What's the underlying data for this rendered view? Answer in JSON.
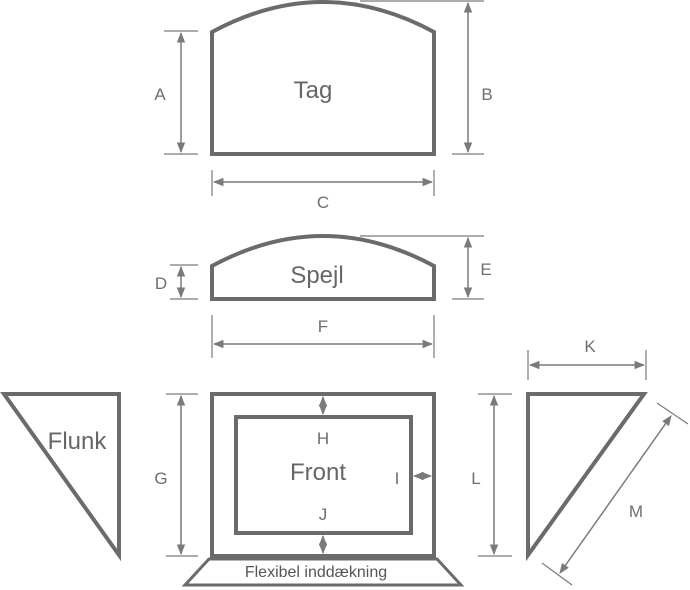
{
  "parts": {
    "tag": "Tag",
    "spejl": "Spejl",
    "flunk": "Flunk",
    "front": "Front",
    "flexibel": "Flexibel inddækning"
  },
  "dimensions": {
    "A": "A",
    "B": "B",
    "C": "C",
    "D": "D",
    "E": "E",
    "F": "F",
    "G": "G",
    "H": "H",
    "I": "I",
    "J": "J",
    "K": "K",
    "L": "L",
    "M": "M"
  },
  "colors": {
    "stroke": "#6b6b6b",
    "text": "#6e6e6e"
  }
}
